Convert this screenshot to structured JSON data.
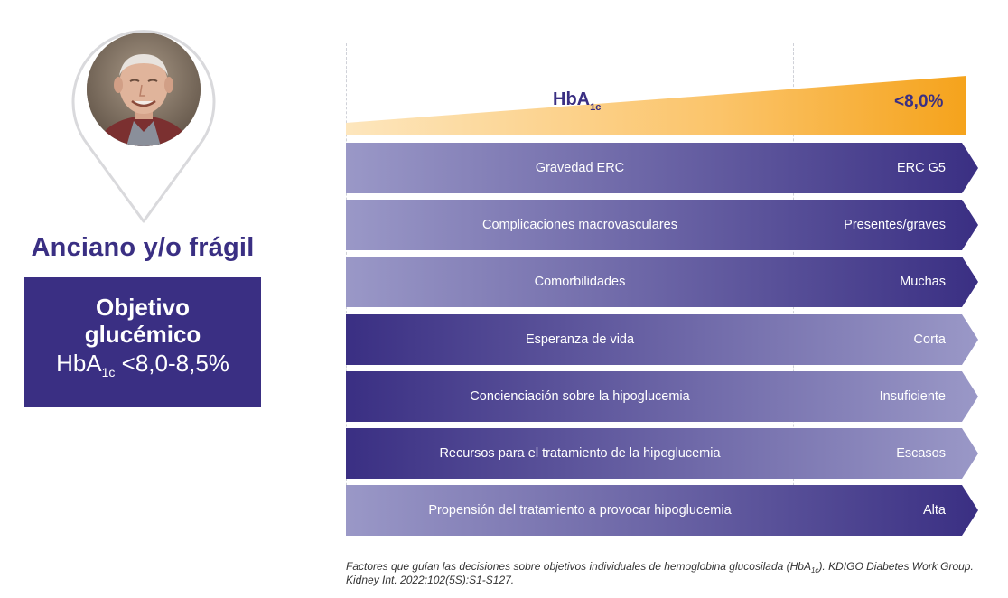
{
  "profile": {
    "title": "Anciano y/o frágil",
    "goal_title": "Objetivo glucémico",
    "goal_metric": "HbA",
    "goal_metric_sub": "1c",
    "goal_range": " <8,0-8,5%"
  },
  "scale": {
    "left_label": "HbA",
    "left_label_sub": "1c",
    "right_label": "<8,0%"
  },
  "factors": [
    {
      "label": "Gravedad ERC",
      "value": "ERC G5",
      "direction": "dark-right"
    },
    {
      "label": "Complicaciones macrovasculares",
      "value": "Presentes/graves",
      "direction": "dark-right"
    },
    {
      "label": "Comorbilidades",
      "value": "Muchas",
      "direction": "dark-right"
    },
    {
      "label": "Esperanza de vida",
      "value": "Corta",
      "direction": "dark-left"
    },
    {
      "label": "Concienciación sobre la hipoglucemia",
      "value": "Insuficiente",
      "direction": "dark-left"
    },
    {
      "label": "Recursos para el tratamiento de la hipoglucemia",
      "value": "Escasos",
      "direction": "dark-left"
    },
    {
      "label": "Propensión del tratamiento a provocar hipoglucemia",
      "value": "Alta",
      "direction": "dark-right"
    }
  ],
  "citation": {
    "text_before": "Factores que guían las decisiones sobre objetivos individuales de hemoglobina glucosilada (HbA",
    "text_sub": "1c",
    "text_after": "). KDIGO Diabetes Work Group. Kidney Int. 2022;102(5S):S1-S127."
  },
  "colors": {
    "navy": "#3a2f83",
    "light_purple": "#9a98c7",
    "orange": "#f6a623",
    "orange_light": "#fde3b4"
  }
}
